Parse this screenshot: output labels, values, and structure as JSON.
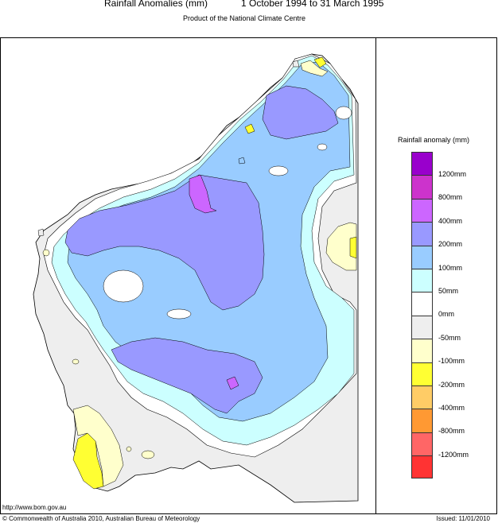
{
  "header": {
    "title": "Rainfall Anomalies (mm)",
    "period": "1 October 1994 to 31 March 1995",
    "subtitle": "Product of the National Climate Centre"
  },
  "legend": {
    "title": "Rainfall anomaly (mm)",
    "colors": [
      "#9900cc",
      "#cc33cc",
      "#cc66ff",
      "#9999ff",
      "#99ccff",
      "#ccffff",
      "#ffffff",
      "#eeeeee",
      "#ffffcc",
      "#ffff33",
      "#ffcc66",
      "#ff9933",
      "#ff6666",
      "#ff3333"
    ],
    "labels": [
      "1200mm",
      "800mm",
      "400mm",
      "200mm",
      "100mm",
      "50mm",
      "0mm",
      "-50mm",
      "-100mm",
      "-200mm",
      "-400mm",
      "-800mm",
      "-1200mm"
    ]
  },
  "footer": {
    "url": "http://www.bom.gov.au",
    "copyright": "© Commonwealth of Australia 2010, Australian Bureau of Meteorology",
    "issued": "Issued: 11/01/2010"
  }
}
